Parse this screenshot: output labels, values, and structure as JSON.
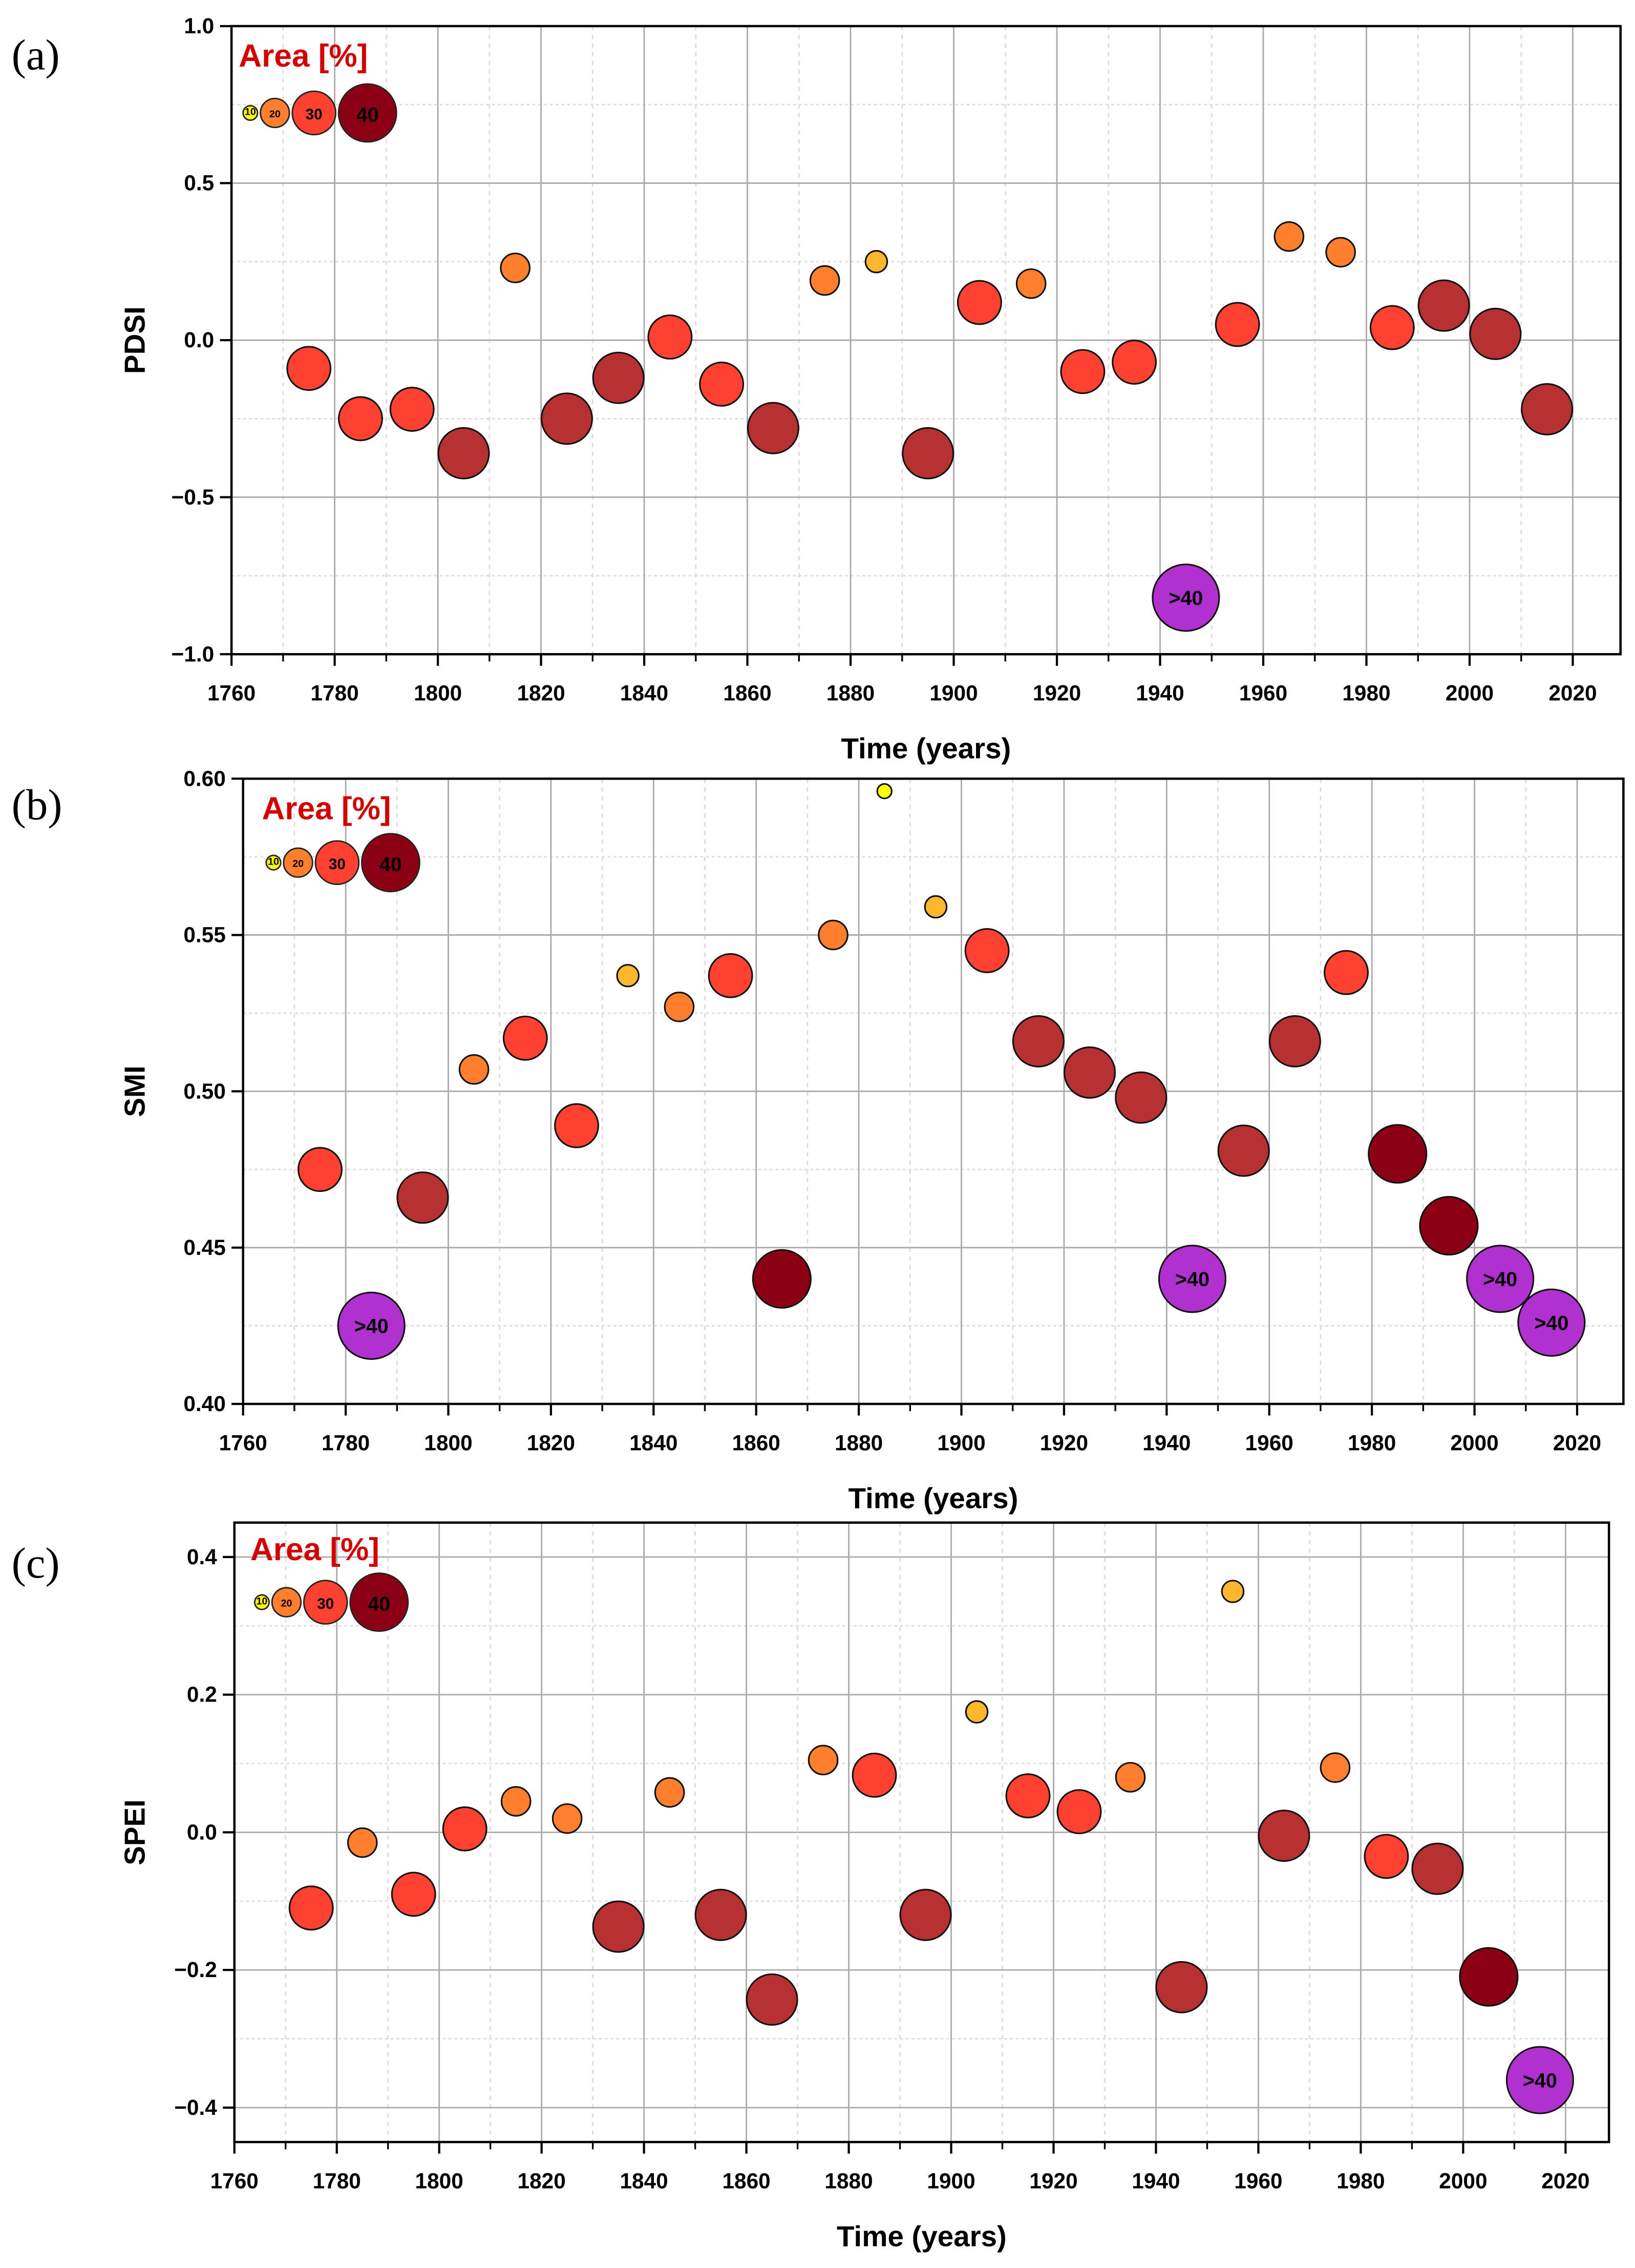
{
  "colors": {
    "yellow": "#ffff00",
    "yellow_orange": "#fdb72e",
    "orange": "#ff7f2f",
    "red": "#ff4131",
    "dark_red": "#b73133",
    "maroon": "#8b0014",
    "purple": "#b030d0"
  },
  "chart_data": [
    {
      "type": "scatter",
      "panel_label": "(a)",
      "ylabel": "PDSI",
      "xlabel": "Time (years)",
      "xlim": [
        1760,
        2030
      ],
      "ylim": [
        -1.0,
        1.0
      ],
      "xticks": [
        1760,
        1780,
        1800,
        1820,
        1840,
        1860,
        1880,
        1900,
        1920,
        1940,
        1960,
        1980,
        2000,
        2020
      ],
      "yticks": [
        -1.0,
        -0.5,
        0.0,
        0.5,
        1.0
      ],
      "ytick_labels": [
        "−1.0",
        "−0.5",
        "0.0",
        "0.5",
        "1.0"
      ],
      "legend_title": "Area [%]",
      "legend_entries": [
        "10",
        "20",
        "30",
        "40"
      ],
      "big_label": ">40",
      "x": [
        1775,
        1785,
        1795,
        1805,
        1815,
        1825,
        1835,
        1845,
        1855,
        1865,
        1875,
        1885,
        1895,
        1905,
        1915,
        1925,
        1935,
        1945,
        1955,
        1965,
        1975,
        1985,
        1995,
        2005,
        2015
      ],
      "y": [
        -0.09,
        -0.25,
        -0.22,
        -0.36,
        0.23,
        -0.25,
        -0.12,
        0.01,
        -0.14,
        -0.28,
        0.19,
        0.25,
        -0.36,
        0.12,
        0.18,
        -0.1,
        -0.07,
        -0.82,
        0.05,
        0.33,
        0.28,
        0.04,
        0.11,
        0.02,
        -0.22
      ],
      "area": [
        30,
        30,
        30,
        35,
        20,
        35,
        35,
        30,
        30,
        35,
        20,
        15,
        35,
        30,
        20,
        30,
        30,
        45,
        30,
        20,
        20,
        30,
        35,
        35,
        35
      ]
    },
    {
      "type": "scatter",
      "panel_label": "(b)",
      "ylabel": "SMI",
      "xlabel": "Time (years)",
      "xlim": [
        1760,
        2030
      ],
      "ylim": [
        0.4,
        0.6
      ],
      "xticks": [
        1760,
        1780,
        1800,
        1820,
        1840,
        1860,
        1880,
        1900,
        1920,
        1940,
        1960,
        1980,
        2000,
        2020
      ],
      "yticks": [
        0.4,
        0.45,
        0.5,
        0.55,
        0.6
      ],
      "ytick_labels": [
        "0.40",
        "0.45",
        "0.50",
        "0.55",
        "0.60"
      ],
      "legend_title": "Area [%]",
      "legend_entries": [
        "10",
        "20",
        "30",
        "40"
      ],
      "big_label": ">40",
      "x": [
        1775,
        1785,
        1795,
        1805,
        1815,
        1825,
        1835,
        1845,
        1855,
        1865,
        1875,
        1885,
        1895,
        1905,
        1915,
        1925,
        1935,
        1945,
        1955,
        1965,
        1975,
        1985,
        1995,
        2005,
        2015
      ],
      "y": [
        0.475,
        0.425,
        0.466,
        0.507,
        0.517,
        0.489,
        0.537,
        0.527,
        0.537,
        0.44,
        0.55,
        0.596,
        0.559,
        0.545,
        0.516,
        0.506,
        0.498,
        0.44,
        0.481,
        0.516,
        0.538,
        0.48,
        0.457,
        0.44,
        0.426
      ],
      "area": [
        30,
        45,
        35,
        20,
        30,
        30,
        15,
        20,
        30,
        40,
        20,
        10,
        15,
        30,
        35,
        35,
        35,
        45,
        35,
        35,
        30,
        40,
        40,
        45,
        45
      ]
    },
    {
      "type": "scatter",
      "panel_label": "(c)",
      "ylabel": "SPEI",
      "xlabel": "Time (years)",
      "xlim": [
        1760,
        2030
      ],
      "ylim": [
        -0.45,
        0.45
      ],
      "xticks": [
        1760,
        1780,
        1800,
        1820,
        1840,
        1860,
        1880,
        1900,
        1920,
        1940,
        1960,
        1980,
        2000,
        2020
      ],
      "yticks": [
        -0.4,
        -0.2,
        0.0,
        0.2,
        0.4
      ],
      "ytick_labels": [
        "−0.4",
        "−0.2",
        "0.0",
        "0.2",
        "0.4"
      ],
      "legend_title": "Area [%]",
      "legend_entries": [
        "10",
        "20",
        "30",
        "40"
      ],
      "big_label": ">40",
      "x": [
        1775,
        1785,
        1795,
        1805,
        1815,
        1825,
        1835,
        1845,
        1855,
        1865,
        1875,
        1885,
        1895,
        1905,
        1915,
        1925,
        1935,
        1945,
        1955,
        1965,
        1975,
        1985,
        1995,
        2005,
        2015
      ],
      "y": [
        -0.11,
        -0.015,
        -0.09,
        0.005,
        0.045,
        0.02,
        -0.137,
        0.058,
        -0.12,
        -0.243,
        0.105,
        0.083,
        -0.12,
        0.175,
        0.053,
        0.03,
        0.08,
        -0.225,
        0.35,
        -0.005,
        0.094,
        -0.035,
        -0.053,
        -0.21,
        -0.36
      ],
      "area": [
        30,
        20,
        30,
        30,
        20,
        20,
        35,
        20,
        35,
        35,
        20,
        30,
        35,
        15,
        30,
        30,
        20,
        35,
        15,
        35,
        20,
        30,
        35,
        40,
        45
      ]
    }
  ]
}
